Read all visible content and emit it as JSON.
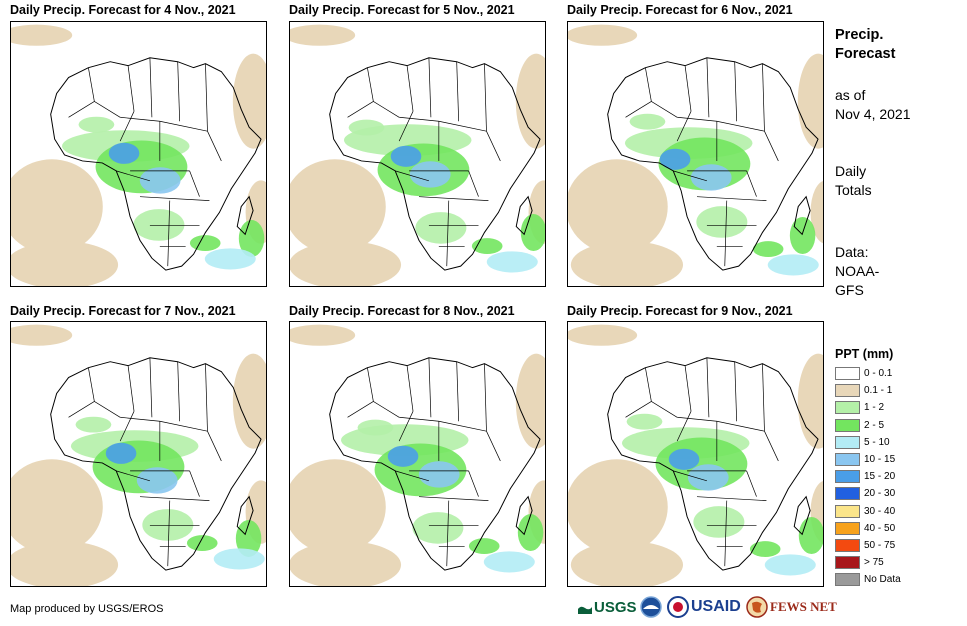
{
  "panels": [
    {
      "title": "Daily Precip. Forecast for 4 Nov., 2021"
    },
    {
      "title": "Daily Precip. Forecast for 5 Nov., 2021"
    },
    {
      "title": "Daily Precip. Forecast for 6 Nov., 2021"
    },
    {
      "title": "Daily Precip. Forecast for 7 Nov., 2021"
    },
    {
      "title": "Daily Precip. Forecast for 8 Nov., 2021"
    },
    {
      "title": "Daily Precip. Forecast for 9 Nov., 2021"
    }
  ],
  "sidebar": {
    "title_line1": "Precip.",
    "title_line2": "Forecast",
    "asof_line1": "as of",
    "asof_line2": "Nov 4, 2021",
    "totals_line1": "Daily",
    "totals_line2": "Totals",
    "data_line1": "Data:",
    "data_line2": "NOAA-",
    "data_line3": "GFS"
  },
  "legend": {
    "title": "PPT (mm)",
    "items": [
      {
        "label": "0 - 0.1",
        "color": "#ffffff"
      },
      {
        "label": "0.1 - 1",
        "color": "#e8d7b9"
      },
      {
        "label": "1 - 2",
        "color": "#b4f0a8"
      },
      {
        "label": "2 - 5",
        "color": "#73e55f"
      },
      {
        "label": "5 - 10",
        "color": "#b3ecf5"
      },
      {
        "label": "10 - 15",
        "color": "#8ac6f0"
      },
      {
        "label": "15 - 20",
        "color": "#4a9ee8"
      },
      {
        "label": "20 - 30",
        "color": "#2160e0"
      },
      {
        "label": "30 - 40",
        "color": "#fbe58a"
      },
      {
        "label": "40 - 50",
        "color": "#f7a21c"
      },
      {
        "label": "50 - 75",
        "color": "#f34a10"
      },
      {
        "label": "> 75",
        "color": "#a8161a"
      },
      {
        "label": "No Data",
        "color": "#9a9a9a"
      }
    ]
  },
  "footer": {
    "credit": "Map produced by USGS/EROS",
    "logos": {
      "usgs": "USGS",
      "usaid": "USAID",
      "fewsnet": "FEWS NET"
    }
  }
}
